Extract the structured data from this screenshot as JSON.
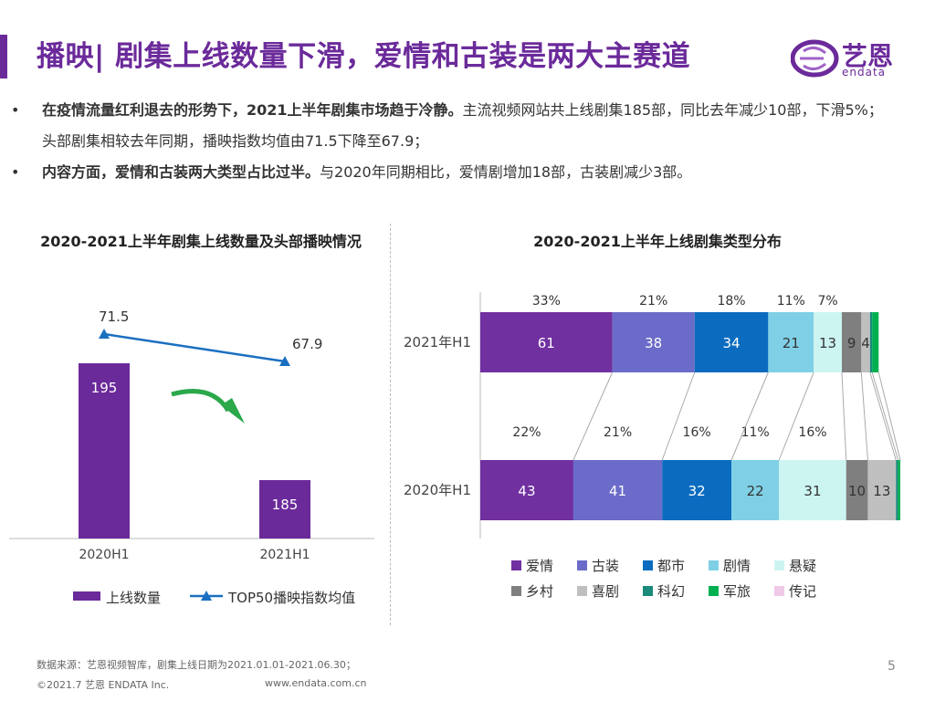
{
  "header": {
    "title": "播映| 剧集上线数量下滑，爱情和古装是两大主赛道",
    "logo_text": "艺恩",
    "logo_sub": "endata"
  },
  "bullets": [
    {
      "bold": "在疫情流量红利退去的形势下，2021上半年剧集市场趋于冷静。",
      "text": "主流视频网站共上线剧集185部，同比去年减少10部，下滑5%；头部剧集相较去年同期，播映指数均值由71.5下降至67.9；"
    },
    {
      "bold": "内容方面，爱情和古装两大类型占比过半。",
      "text": "与2020年同期相比，爱情剧增加18部，古装剧减少3部。"
    }
  ],
  "chart_data": [
    {
      "type": "bar",
      "title": "2020-2021上半年剧集上线数量及头部播映情况",
      "categories": [
        "2020H1",
        "2021H1"
      ],
      "series": [
        {
          "name": "上线数量",
          "type": "bar",
          "values": [
            195,
            185
          ],
          "color": "#6b2a9a"
        },
        {
          "name": "TOP50播映指数均值",
          "type": "line",
          "values": [
            71.5,
            67.9
          ],
          "color": "#1a6fc0"
        }
      ],
      "legend_position": "bottom"
    },
    {
      "type": "bar",
      "title": "2020-2021上半年上线剧集类型分布",
      "orientation": "horizontal-stacked",
      "categories": [
        "2021年H1",
        "2020年H1"
      ],
      "series": [
        {
          "name": "爱情",
          "color": "#7030a0",
          "values": [
            61,
            43
          ],
          "pct": [
            "33%",
            "22%"
          ]
        },
        {
          "name": "古装",
          "color": "#6b6bc9",
          "values": [
            38,
            41
          ],
          "pct": [
            "21%",
            "21%"
          ]
        },
        {
          "name": "都市",
          "color": "#0b6cbf",
          "values": [
            34,
            32
          ],
          "pct": [
            "18%",
            "16%"
          ]
        },
        {
          "name": "剧情",
          "color": "#7fd0e6",
          "values": [
            21,
            22
          ],
          "pct": [
            "11%",
            "11%"
          ]
        },
        {
          "name": "悬疑",
          "color": "#ccf5f2",
          "values": [
            13,
            31
          ],
          "pct": [
            "7%",
            "16%"
          ]
        },
        {
          "name": "乡村",
          "color": "#7f7f7f",
          "values": [
            9,
            10
          ],
          "pct": [
            "",
            ""
          ]
        },
        {
          "name": "喜剧",
          "color": "#bfbfbf",
          "values": [
            4,
            13
          ],
          "pct": [
            "",
            ""
          ]
        },
        {
          "name": "科幻",
          "color": "#1a8a7a",
          "values": [
            1,
            1
          ],
          "pct": [
            "",
            ""
          ]
        },
        {
          "name": "军旅",
          "color": "#00b050",
          "values": [
            3,
            1
          ],
          "pct": [
            "",
            ""
          ]
        },
        {
          "name": "传记",
          "color": "#f0c8e8",
          "values": [
            0,
            0
          ],
          "pct": [
            "",
            ""
          ]
        }
      ],
      "legend_position": "bottom"
    }
  ],
  "footer": {
    "source": "数据来源：艺恩视频智库，剧集上线日期为2021.01.01-2021.06.30；",
    "copyright": "©2021.7 艺恩 ENDATA Inc.",
    "website": "www.endata.com.cn",
    "page": "5"
  }
}
